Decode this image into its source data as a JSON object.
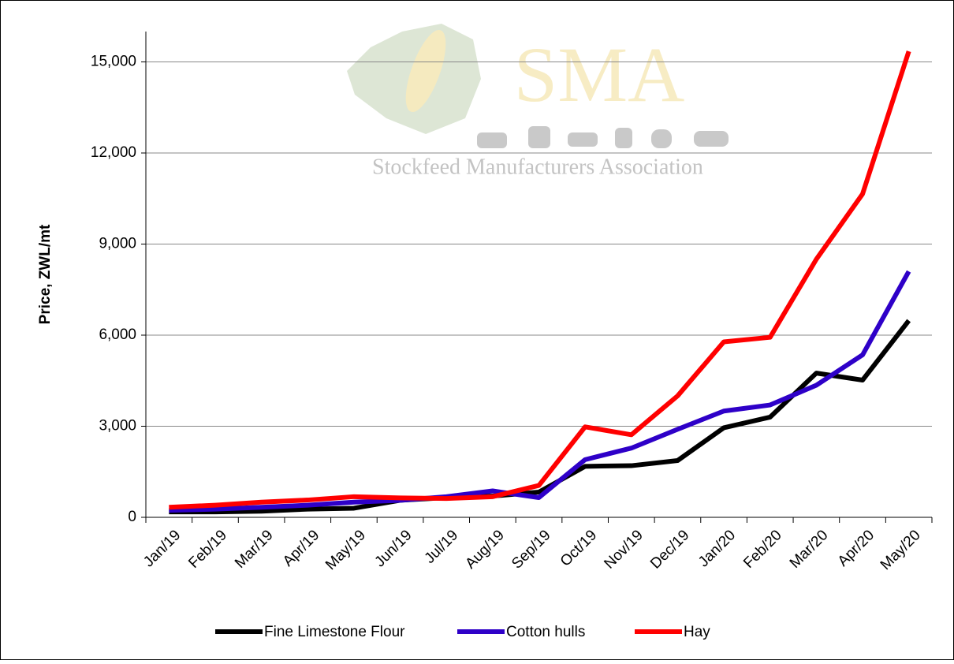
{
  "chart_data": {
    "type": "line",
    "watermark": {
      "logo": "SMA",
      "tagline": "Stockfeed Manufacturers Association"
    },
    "y_label": "Price, ZWL/mt",
    "categories": [
      "Jan/19",
      "Feb/19",
      "Mar/19",
      "Apr/19",
      "May/19",
      "Jun/19",
      "Jul/19",
      "Aug/19",
      "Sep/19",
      "Oct/19",
      "Nov/19",
      "Dec/19",
      "Jan/20",
      "Feb/20",
      "Mar/20",
      "Apr/20",
      "May/20"
    ],
    "series": [
      {
        "name": "Fine Limestone Flour",
        "color": "#000000",
        "values": [
          180,
          180,
          200,
          270,
          300,
          560,
          650,
          700,
          830,
          1680,
          1700,
          1870,
          2950,
          3300,
          4750,
          4520,
          6480
        ]
      },
      {
        "name": "Cotton hulls",
        "color": "#2e00c8",
        "values": [
          230,
          270,
          330,
          400,
          500,
          560,
          680,
          870,
          650,
          1900,
          2280,
          2900,
          3500,
          3700,
          4350,
          5350,
          8100
        ]
      },
      {
        "name": "Hay",
        "color": "#ff0000",
        "values": [
          330,
          400,
          500,
          570,
          680,
          640,
          620,
          680,
          1050,
          2980,
          2720,
          4000,
          5780,
          5930,
          8500,
          10650,
          15350
        ]
      }
    ],
    "ylim": [
      0,
      16000
    ],
    "yticks": [
      0,
      {
        "value": 3000,
        "label": "3,000"
      },
      {
        "value": 6000,
        "label": "6,000"
      },
      {
        "value": 9000,
        "label": "9,000"
      },
      {
        "value": 12000,
        "label": "12,000"
      },
      {
        "value": 15000,
        "label": "15,000"
      }
    ],
    "grid": true,
    "legend": "bottom"
  }
}
